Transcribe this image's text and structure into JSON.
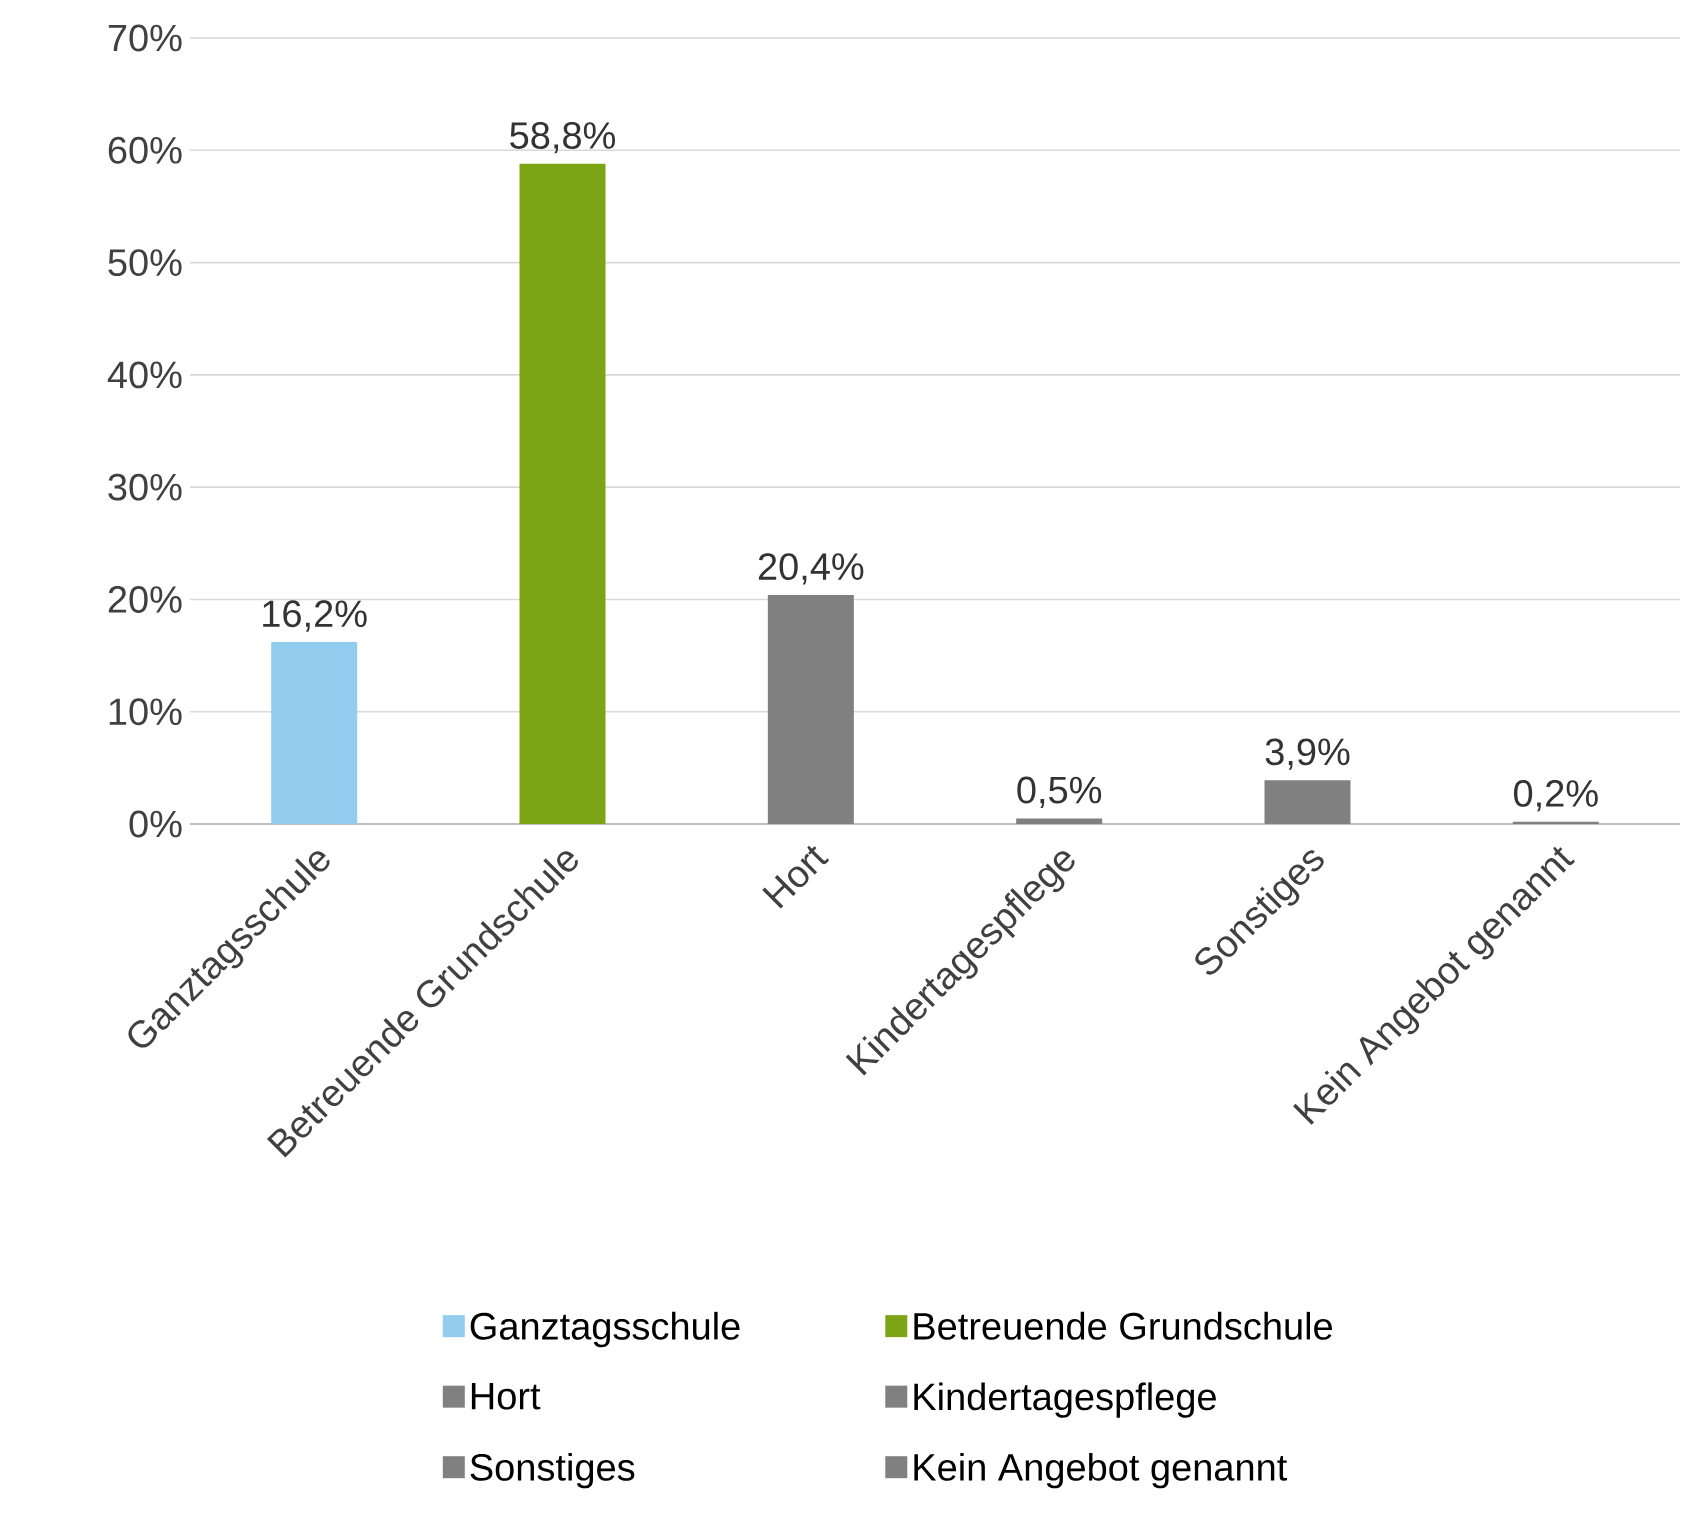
{
  "chart_data": {
    "type": "bar",
    "categories": [
      "Ganztagsschule",
      "Betreuende Grundschule",
      "Hort",
      "Kindertagespflege",
      "Sonstiges",
      "Kein Angebot genannt"
    ],
    "series": [
      {
        "name": "Ganztagsschule",
        "color": "#92cdf0",
        "values": [
          16.2,
          null,
          null,
          null,
          null,
          null
        ],
        "value_labels": [
          "16,2%",
          null,
          null,
          null,
          null,
          null
        ]
      },
      {
        "name": "Betreuende Grundschule",
        "color": "#7da414",
        "values": [
          null,
          58.8,
          null,
          null,
          null,
          null
        ],
        "value_labels": [
          null,
          "58,8%",
          null,
          null,
          null,
          null
        ]
      },
      {
        "name": "Hort",
        "color": "#808080",
        "values": [
          null,
          null,
          20.4,
          null,
          null,
          null
        ],
        "value_labels": [
          null,
          null,
          "20,4%",
          null,
          null,
          null
        ]
      },
      {
        "name": "Kindertagespflege",
        "color": "#808080",
        "values": [
          null,
          null,
          null,
          0.5,
          null,
          null
        ],
        "value_labels": [
          null,
          null,
          null,
          "0,5%",
          null,
          null
        ]
      },
      {
        "name": "Sonstiges",
        "color": "#808080",
        "values": [
          null,
          null,
          null,
          null,
          3.9,
          null
        ],
        "value_labels": [
          null,
          null,
          null,
          null,
          "3,9%",
          null
        ]
      },
      {
        "name": "Kein Angebot genannt",
        "color": "#808080",
        "values": [
          null,
          null,
          null,
          null,
          null,
          0.2
        ],
        "value_labels": [
          null,
          null,
          null,
          null,
          null,
          "0,2%"
        ]
      }
    ],
    "ylim": [
      0,
      70
    ],
    "yticks": [
      {
        "value": 0,
        "label": "0%"
      },
      {
        "value": 10,
        "label": "10%"
      },
      {
        "value": 20,
        "label": "20%"
      },
      {
        "value": 30,
        "label": "30%"
      },
      {
        "value": 40,
        "label": "40%"
      },
      {
        "value": 50,
        "label": "50%"
      },
      {
        "value": 60,
        "label": "60%"
      },
      {
        "value": 70,
        "label": "70%"
      }
    ],
    "grid": "y",
    "legend": "bottom"
  }
}
